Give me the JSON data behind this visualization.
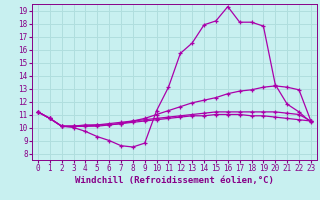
{
  "background_color": "#c8f0f0",
  "grid_color": "#b0dede",
  "line_color": "#aa00aa",
  "xlabel": "Windchill (Refroidissement éolien,°C)",
  "xlim": [
    -0.5,
    23.5
  ],
  "ylim": [
    7.5,
    19.5
  ],
  "xticks": [
    0,
    1,
    2,
    3,
    4,
    5,
    6,
    7,
    8,
    9,
    10,
    11,
    12,
    13,
    14,
    15,
    16,
    17,
    18,
    19,
    20,
    21,
    22,
    23
  ],
  "yticks": [
    8,
    9,
    10,
    11,
    12,
    13,
    14,
    15,
    16,
    17,
    18,
    19
  ],
  "line1_y": [
    11.2,
    10.7,
    10.1,
    10.0,
    9.7,
    9.3,
    9.0,
    8.6,
    8.5,
    8.8,
    11.3,
    13.1,
    15.7,
    16.5,
    17.9,
    18.2,
    19.3,
    18.1,
    18.1,
    17.8,
    13.3,
    11.8,
    11.2,
    10.4
  ],
  "line2_y": [
    11.2,
    10.7,
    10.1,
    10.1,
    10.1,
    10.2,
    10.2,
    10.3,
    10.5,
    10.7,
    11.0,
    11.3,
    11.6,
    11.9,
    12.1,
    12.3,
    12.6,
    12.8,
    12.9,
    13.1,
    13.2,
    13.1,
    12.9,
    10.5
  ],
  "line3_y": [
    11.2,
    10.7,
    10.1,
    10.1,
    10.2,
    10.2,
    10.3,
    10.4,
    10.5,
    10.6,
    10.7,
    10.8,
    10.9,
    11.0,
    11.1,
    11.2,
    11.2,
    11.2,
    11.2,
    11.2,
    11.2,
    11.1,
    11.0,
    10.5
  ],
  "line4_y": [
    11.2,
    10.7,
    10.1,
    10.1,
    10.1,
    10.1,
    10.2,
    10.3,
    10.4,
    10.5,
    10.6,
    10.7,
    10.8,
    10.9,
    10.9,
    11.0,
    11.0,
    11.0,
    10.9,
    10.9,
    10.8,
    10.7,
    10.6,
    10.5
  ],
  "font_color": "#880088",
  "tick_fontsize": 5.5,
  "label_fontsize": 6.5
}
